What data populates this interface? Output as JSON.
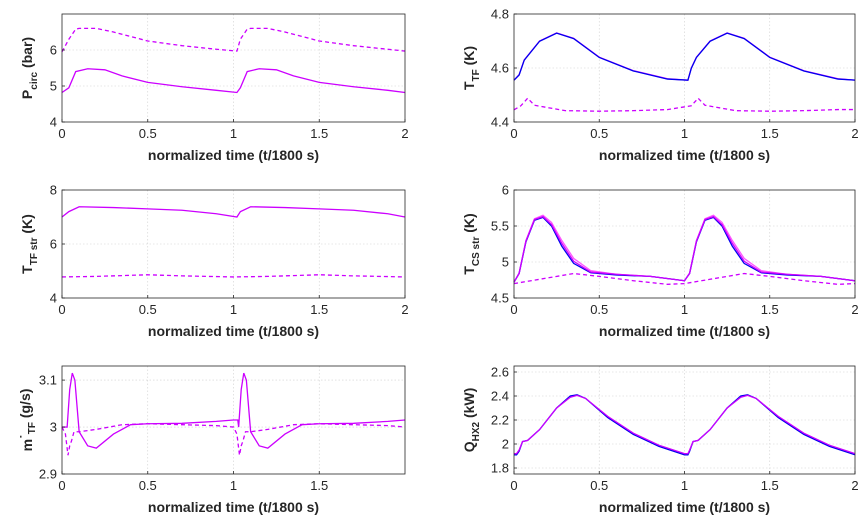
{
  "colors": {
    "magenta": "#cc00ff",
    "blue": "#0000ee",
    "pink": "#ff55ff",
    "axis": "#262626",
    "grid": "#d0d0d0"
  },
  "chart_data": [
    {
      "id": "p1",
      "type": "line",
      "ylabel": {
        "main": "P",
        "sub": "circ",
        "unit": " (bar)"
      },
      "xlabel": "normalized time (t/1800 s)",
      "xlim": [
        0,
        2
      ],
      "ylim": [
        4,
        7
      ],
      "xticks": [
        0,
        0.5,
        1,
        1.5,
        2
      ],
      "xticklabels": [
        "0",
        "0.5",
        "1",
        "1.5",
        "2"
      ],
      "yticks": [
        4,
        5,
        6
      ],
      "yticklabels": [
        "4",
        "5",
        "6"
      ],
      "grid": true,
      "series": [
        {
          "color": "#cc00ff",
          "dash": true,
          "x": [
            0,
            0.04,
            0.08,
            0.1,
            0.2,
            0.3,
            0.5,
            0.7,
            0.9,
            1.02,
            1.04,
            1.08,
            1.1,
            1.2,
            1.3,
            1.5,
            1.7,
            1.9,
            2.0
          ],
          "y": [
            5.95,
            6.3,
            6.58,
            6.6,
            6.6,
            6.5,
            6.25,
            6.12,
            6.02,
            5.97,
            6.3,
            6.58,
            6.6,
            6.6,
            6.5,
            6.25,
            6.12,
            6.02,
            5.97
          ]
        },
        {
          "color": "#cc00ff",
          "dash": false,
          "x": [
            0,
            0.04,
            0.08,
            0.15,
            0.25,
            0.35,
            0.5,
            0.7,
            0.9,
            1.02,
            1.04,
            1.08,
            1.15,
            1.25,
            1.35,
            1.5,
            1.7,
            1.9,
            2.0
          ],
          "y": [
            4.82,
            4.95,
            5.4,
            5.48,
            5.45,
            5.28,
            5.1,
            4.98,
            4.88,
            4.82,
            4.95,
            5.4,
            5.48,
            5.45,
            5.28,
            5.1,
            4.98,
            4.88,
            4.82
          ]
        }
      ]
    },
    {
      "id": "p2",
      "type": "line",
      "ylabel": {
        "main": "T",
        "sub": "TF",
        "unit": " (K)"
      },
      "xlabel": "normalized time (t/1800 s)",
      "xlim": [
        0,
        2
      ],
      "ylim": [
        4.4,
        4.8
      ],
      "xticks": [
        0,
        0.5,
        1,
        1.5,
        2
      ],
      "xticklabels": [
        "0",
        "0.5",
        "1",
        "1.5",
        "2"
      ],
      "yticks": [
        4.4,
        4.6,
        4.8
      ],
      "yticklabels": [
        "4.4",
        "4.6",
        "4.8"
      ],
      "grid": true,
      "series": [
        {
          "color": "#cc00ff",
          "dash": false,
          "x": [
            0,
            0.03,
            0.06,
            0.15,
            0.25,
            0.35,
            0.5,
            0.7,
            0.9,
            1.02,
            1.04,
            1.07,
            1.15,
            1.25,
            1.35,
            1.5,
            1.7,
            1.9,
            2.0
          ],
          "y": [
            4.555,
            4.575,
            4.63,
            4.7,
            4.73,
            4.71,
            4.64,
            4.59,
            4.56,
            4.555,
            4.6,
            4.64,
            4.7,
            4.73,
            4.71,
            4.64,
            4.59,
            4.56,
            4.555
          ]
        },
        {
          "color": "#0000ee",
          "dash": false,
          "x": [
            0,
            0.03,
            0.06,
            0.15,
            0.25,
            0.35,
            0.5,
            0.7,
            0.9,
            1.02,
            1.04,
            1.07,
            1.15,
            1.25,
            1.35,
            1.5,
            1.7,
            1.9,
            2.0
          ],
          "y": [
            4.555,
            4.574,
            4.629,
            4.699,
            4.729,
            4.709,
            4.639,
            4.589,
            4.559,
            4.555,
            4.599,
            4.639,
            4.699,
            4.729,
            4.709,
            4.639,
            4.589,
            4.559,
            4.555
          ]
        },
        {
          "color": "#cc00ff",
          "dash": true,
          "x": [
            0,
            0.04,
            0.08,
            0.12,
            0.3,
            0.5,
            0.7,
            0.9,
            1.04,
            1.08,
            1.12,
            1.3,
            1.5,
            1.7,
            1.9,
            2.0
          ],
          "y": [
            4.445,
            4.46,
            4.488,
            4.462,
            4.442,
            4.44,
            4.442,
            4.446,
            4.46,
            4.488,
            4.462,
            4.442,
            4.44,
            4.442,
            4.446,
            4.446
          ]
        }
      ]
    },
    {
      "id": "p3",
      "type": "line",
      "ylabel": {
        "main": "T",
        "sub": "TF str",
        "unit": " (K)"
      },
      "xlabel": "normalized time (t/1800 s)",
      "xlim": [
        0,
        2
      ],
      "ylim": [
        4,
        8
      ],
      "xticks": [
        0,
        0.5,
        1,
        1.5,
        2
      ],
      "xticklabels": [
        "0",
        "0.5",
        "1",
        "1.5",
        "2"
      ],
      "yticks": [
        4,
        6,
        8
      ],
      "yticklabels": [
        "4",
        "6",
        "8"
      ],
      "grid": true,
      "series": [
        {
          "color": "#cc00ff",
          "dash": false,
          "x": [
            0,
            0.04,
            0.1,
            0.3,
            0.5,
            0.7,
            0.9,
            1.02,
            1.04,
            1.1,
            1.3,
            1.5,
            1.7,
            1.9,
            2.0
          ],
          "y": [
            7.0,
            7.2,
            7.38,
            7.35,
            7.3,
            7.25,
            7.12,
            7.0,
            7.2,
            7.38,
            7.35,
            7.3,
            7.25,
            7.12,
            7.0
          ]
        },
        {
          "color": "#cc00ff",
          "dash": true,
          "x": [
            0,
            0.2,
            0.5,
            0.7,
            1.0,
            1.2,
            1.5,
            1.7,
            2.0
          ],
          "y": [
            4.78,
            4.8,
            4.86,
            4.82,
            4.78,
            4.8,
            4.86,
            4.82,
            4.78
          ]
        }
      ]
    },
    {
      "id": "p4",
      "type": "line",
      "ylabel": {
        "main": "T",
        "sub": "CS str",
        "unit": " (K)"
      },
      "xlabel": "normalized time (t/1800 s)",
      "xlim": [
        0,
        2
      ],
      "ylim": [
        4.5,
        6
      ],
      "xticks": [
        0,
        0.5,
        1,
        1.5,
        2
      ],
      "xticklabels": [
        "0",
        "0.5",
        "1",
        "1.5",
        "2"
      ],
      "yticks": [
        4.5,
        5,
        5.5,
        6
      ],
      "yticklabels": [
        "4.5",
        "5",
        "5.5",
        "6"
      ],
      "grid": true,
      "series": [
        {
          "color": "#ff55ff",
          "dash": false,
          "x": [
            0,
            0.03,
            0.07,
            0.12,
            0.17,
            0.22,
            0.28,
            0.35,
            0.45,
            0.6,
            0.8,
            1.0,
            1.03,
            1.07,
            1.12,
            1.17,
            1.22,
            1.28,
            1.35,
            1.45,
            1.6,
            1.8,
            2.0
          ],
          "y": [
            4.72,
            4.85,
            5.3,
            5.6,
            5.65,
            5.55,
            5.3,
            5.05,
            4.88,
            4.83,
            4.8,
            4.74,
            4.85,
            5.3,
            5.6,
            5.65,
            5.55,
            5.3,
            5.05,
            4.88,
            4.83,
            4.8,
            4.74
          ]
        },
        {
          "color": "#0000ee",
          "dash": false,
          "x": [
            0,
            0.03,
            0.07,
            0.12,
            0.17,
            0.22,
            0.28,
            0.35,
            0.45,
            0.6,
            0.8,
            1.0,
            1.03,
            1.07,
            1.12,
            1.17,
            1.22,
            1.28,
            1.35,
            1.45,
            1.6,
            1.8,
            2.0
          ],
          "y": [
            4.72,
            4.84,
            5.28,
            5.58,
            5.62,
            5.5,
            5.22,
            4.98,
            4.85,
            4.82,
            4.8,
            4.74,
            4.84,
            5.28,
            5.58,
            5.62,
            5.5,
            5.22,
            4.98,
            4.85,
            4.82,
            4.8,
            4.74
          ]
        },
        {
          "color": "#cc00ff",
          "dash": false,
          "x": [
            0,
            0.03,
            0.07,
            0.12,
            0.17,
            0.22,
            0.28,
            0.35,
            0.45,
            0.6,
            0.8,
            1.0,
            1.03,
            1.07,
            1.12,
            1.17,
            1.22,
            1.28,
            1.35,
            1.45,
            1.6,
            1.8,
            2.0
          ],
          "y": [
            4.72,
            4.84,
            5.29,
            5.59,
            5.63,
            5.52,
            5.26,
            5.01,
            4.86,
            4.83,
            4.8,
            4.74,
            4.84,
            5.29,
            5.59,
            5.63,
            5.52,
            5.26,
            5.01,
            4.86,
            4.83,
            4.8,
            4.74
          ]
        },
        {
          "color": "#cc00ff",
          "dash": true,
          "x": [
            0,
            0.15,
            0.35,
            0.5,
            0.7,
            0.9,
            1.0,
            1.15,
            1.35,
            1.5,
            1.7,
            1.9,
            2.0
          ],
          "y": [
            4.7,
            4.76,
            4.84,
            4.8,
            4.74,
            4.69,
            4.7,
            4.76,
            4.84,
            4.8,
            4.74,
            4.69,
            4.7
          ]
        }
      ]
    },
    {
      "id": "p5",
      "type": "line",
      "ylabel": {
        "main": "m",
        "dot": "˙",
        "sub": "TF",
        "unit": " (g/s)"
      },
      "xlabel": "normalized time (t/1800 s)",
      "xlim": [
        0,
        2
      ],
      "ylim": [
        2.9,
        3.13
      ],
      "xticks": [
        0,
        0.5,
        1,
        1.5
      ],
      "xticklabels": [
        "0",
        "0.5",
        "1",
        "1.5"
      ],
      "yticks": [
        2.9,
        3,
        3.1
      ],
      "yticklabels": [
        "2.9",
        "3",
        "3.1"
      ],
      "grid": true,
      "series": [
        {
          "color": "#cc00ff",
          "dash": false,
          "x": [
            0,
            0.03,
            0.045,
            0.06,
            0.075,
            0.1,
            0.15,
            0.2,
            0.3,
            0.4,
            0.5,
            0.7,
            0.9,
            1.0,
            1.025,
            1.03,
            1.045,
            1.06,
            1.075,
            1.1,
            1.15,
            1.2,
            1.3,
            1.4,
            1.5,
            1.7,
            1.9,
            2.0
          ],
          "y": [
            3.0,
            3.0,
            3.08,
            3.115,
            3.1,
            2.99,
            2.96,
            2.955,
            2.985,
            3.005,
            3.007,
            3.008,
            3.012,
            3.015,
            3.015,
            3.0,
            3.08,
            3.115,
            3.1,
            2.99,
            2.96,
            2.955,
            2.985,
            3.005,
            3.007,
            3.008,
            3.012,
            3.015
          ]
        },
        {
          "color": "#cc00ff",
          "dash": true,
          "x": [
            0,
            0.02,
            0.035,
            0.045,
            0.055,
            0.07,
            0.1,
            0.2,
            0.35,
            0.5,
            0.7,
            0.9,
            1.0,
            1.02,
            1.035,
            1.045,
            1.055,
            1.07,
            1.1,
            1.2,
            1.35,
            1.5,
            1.7,
            1.9,
            2.0
          ],
          "y": [
            3.0,
            2.985,
            2.94,
            2.96,
            2.97,
            2.99,
            2.99,
            2.995,
            3.005,
            3.007,
            3.005,
            3.003,
            3.0,
            2.985,
            2.94,
            2.96,
            2.97,
            2.99,
            2.99,
            2.995,
            3.005,
            3.007,
            3.005,
            3.003,
            3.0
          ]
        }
      ]
    },
    {
      "id": "p6",
      "type": "line",
      "ylabel": {
        "main": "Q",
        "sub": "HX2",
        "unit": " (kW)"
      },
      "xlabel": "normalized time (t/1800 s)",
      "xlim": [
        0,
        2
      ],
      "ylim": [
        1.75,
        2.65
      ],
      "xticks": [
        0,
        0.5,
        1,
        1.5,
        2
      ],
      "xticklabels": [
        "0",
        "0.5",
        "1",
        "1.5",
        "2"
      ],
      "yticks": [
        1.8,
        2,
        2.2,
        2.4,
        2.6
      ],
      "yticklabels": [
        "1.8",
        "2",
        "2.2",
        "2.4",
        "2.6"
      ],
      "grid": true,
      "series": [
        {
          "color": "#0000ee",
          "dash": false,
          "x": [
            0,
            0.015,
            0.03,
            0.05,
            0.08,
            0.15,
            0.25,
            0.33,
            0.37,
            0.42,
            0.55,
            0.7,
            0.85,
            1.0,
            1.02,
            1.03,
            1.05,
            1.08,
            1.15,
            1.25,
            1.33,
            1.37,
            1.42,
            1.55,
            1.7,
            1.85,
            2.0
          ],
          "y": [
            1.91,
            1.91,
            1.94,
            2.02,
            2.03,
            2.12,
            2.3,
            2.4,
            2.41,
            2.38,
            2.22,
            2.08,
            1.98,
            1.91,
            1.91,
            1.94,
            2.02,
            2.03,
            2.12,
            2.3,
            2.4,
            2.41,
            2.38,
            2.22,
            2.08,
            1.98,
            1.91
          ]
        },
        {
          "color": "#cc00ff",
          "dash": false,
          "x": [
            0,
            0.015,
            0.03,
            0.05,
            0.08,
            0.15,
            0.25,
            0.33,
            0.37,
            0.42,
            0.55,
            0.7,
            0.85,
            1.0,
            1.02,
            1.03,
            1.05,
            1.08,
            1.15,
            1.25,
            1.33,
            1.37,
            1.42,
            1.55,
            1.7,
            1.85,
            2.0
          ],
          "y": [
            1.92,
            1.92,
            1.95,
            2.02,
            2.03,
            2.12,
            2.3,
            2.39,
            2.405,
            2.38,
            2.23,
            2.09,
            1.99,
            1.92,
            1.92,
            1.95,
            2.02,
            2.03,
            2.12,
            2.3,
            2.39,
            2.405,
            2.38,
            2.23,
            2.09,
            1.99,
            1.92
          ]
        }
      ]
    }
  ]
}
